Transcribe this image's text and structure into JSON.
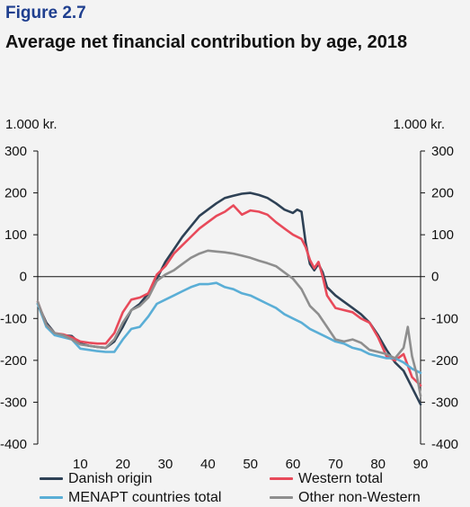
{
  "figure_label": "Figure 2.7",
  "title": "Average net financial contribution by age, 2018",
  "unit_left": "1.000 kr.",
  "unit_right": "1.000 kr.",
  "colors": {
    "danish": "#2e4155",
    "western": "#e84a5a",
    "menapt": "#5aaed6",
    "other": "#8e8e8e",
    "axis": "#111111",
    "background": "#f3f3f3"
  },
  "chart_data": {
    "type": "line",
    "title": "Average net financial contribution by age, 2018",
    "xlabel": "",
    "ylabel": "1.000 kr.",
    "xlim": [
      0,
      90
    ],
    "ylim": [
      -400,
      300
    ],
    "x_ticks": [
      10,
      20,
      30,
      40,
      50,
      60,
      70,
      80,
      90
    ],
    "y_ticks": [
      300,
      200,
      100,
      0,
      -100,
      -200,
      -300,
      -400
    ],
    "y_tick_labels": [
      "300",
      "200",
      "100",
      "0",
      "-100",
      "-200",
      "-300",
      "-400"
    ],
    "grid": false,
    "legend": "bottom",
    "series": [
      {
        "name": "Danish origin",
        "color": "#2e4155",
        "points": [
          [
            0,
            -65
          ],
          [
            2,
            -110
          ],
          [
            4,
            -135
          ],
          [
            6,
            -140
          ],
          [
            8,
            -142
          ],
          [
            10,
            -160
          ],
          [
            12,
            -165
          ],
          [
            14,
            -168
          ],
          [
            16,
            -170
          ],
          [
            18,
            -155
          ],
          [
            20,
            -120
          ],
          [
            22,
            -80
          ],
          [
            24,
            -65
          ],
          [
            26,
            -40
          ],
          [
            28,
            -5
          ],
          [
            30,
            35
          ],
          [
            32,
            65
          ],
          [
            34,
            95
          ],
          [
            36,
            120
          ],
          [
            38,
            145
          ],
          [
            40,
            160
          ],
          [
            42,
            175
          ],
          [
            44,
            188
          ],
          [
            46,
            193
          ],
          [
            48,
            198
          ],
          [
            50,
            200
          ],
          [
            52,
            195
          ],
          [
            54,
            188
          ],
          [
            56,
            175
          ],
          [
            58,
            160
          ],
          [
            60,
            152
          ],
          [
            61,
            160
          ],
          [
            62,
            155
          ],
          [
            63,
            80
          ],
          [
            64,
            30
          ],
          [
            65,
            15
          ],
          [
            66,
            30
          ],
          [
            67,
            10
          ],
          [
            68,
            -25
          ],
          [
            70,
            -45
          ],
          [
            72,
            -60
          ],
          [
            74,
            -75
          ],
          [
            76,
            -90
          ],
          [
            78,
            -110
          ],
          [
            80,
            -140
          ],
          [
            82,
            -175
          ],
          [
            84,
            -205
          ],
          [
            86,
            -225
          ],
          [
            88,
            -265
          ],
          [
            90,
            -305
          ]
        ]
      },
      {
        "name": "Western total",
        "color": "#e84a5a",
        "points": [
          [
            0,
            -60
          ],
          [
            2,
            -115
          ],
          [
            4,
            -135
          ],
          [
            6,
            -138
          ],
          [
            8,
            -145
          ],
          [
            10,
            -155
          ],
          [
            12,
            -158
          ],
          [
            14,
            -160
          ],
          [
            16,
            -160
          ],
          [
            18,
            -135
          ],
          [
            20,
            -85
          ],
          [
            22,
            -55
          ],
          [
            24,
            -50
          ],
          [
            26,
            -40
          ],
          [
            28,
            5
          ],
          [
            30,
            25
          ],
          [
            32,
            55
          ],
          [
            34,
            75
          ],
          [
            36,
            95
          ],
          [
            38,
            115
          ],
          [
            40,
            130
          ],
          [
            42,
            145
          ],
          [
            44,
            155
          ],
          [
            46,
            170
          ],
          [
            48,
            148
          ],
          [
            50,
            158
          ],
          [
            52,
            155
          ],
          [
            54,
            148
          ],
          [
            56,
            130
          ],
          [
            58,
            115
          ],
          [
            60,
            100
          ],
          [
            62,
            90
          ],
          [
            63,
            70
          ],
          [
            64,
            40
          ],
          [
            65,
            20
          ],
          [
            66,
            35
          ],
          [
            67,
            0
          ],
          [
            68,
            -45
          ],
          [
            70,
            -75
          ],
          [
            72,
            -80
          ],
          [
            74,
            -85
          ],
          [
            76,
            -100
          ],
          [
            78,
            -110
          ],
          [
            80,
            -145
          ],
          [
            82,
            -190
          ],
          [
            84,
            -200
          ],
          [
            86,
            -185
          ],
          [
            88,
            -240
          ],
          [
            90,
            -260
          ]
        ]
      },
      {
        "name": "MENAPT countries total",
        "color": "#5aaed6",
        "points": [
          [
            0,
            -65
          ],
          [
            2,
            -120
          ],
          [
            4,
            -140
          ],
          [
            6,
            -145
          ],
          [
            8,
            -150
          ],
          [
            10,
            -172
          ],
          [
            12,
            -175
          ],
          [
            14,
            -178
          ],
          [
            16,
            -180
          ],
          [
            18,
            -180
          ],
          [
            20,
            -150
          ],
          [
            22,
            -125
          ],
          [
            24,
            -120
          ],
          [
            26,
            -95
          ],
          [
            28,
            -65
          ],
          [
            30,
            -55
          ],
          [
            32,
            -45
          ],
          [
            34,
            -35
          ],
          [
            36,
            -25
          ],
          [
            38,
            -18
          ],
          [
            40,
            -18
          ],
          [
            42,
            -15
          ],
          [
            44,
            -25
          ],
          [
            46,
            -30
          ],
          [
            48,
            -40
          ],
          [
            50,
            -45
          ],
          [
            52,
            -55
          ],
          [
            54,
            -65
          ],
          [
            56,
            -75
          ],
          [
            58,
            -90
          ],
          [
            60,
            -100
          ],
          [
            62,
            -110
          ],
          [
            64,
            -125
          ],
          [
            66,
            -135
          ],
          [
            68,
            -145
          ],
          [
            70,
            -155
          ],
          [
            72,
            -160
          ],
          [
            74,
            -170
          ],
          [
            76,
            -175
          ],
          [
            78,
            -185
          ],
          [
            80,
            -190
          ],
          [
            82,
            -195
          ],
          [
            84,
            -195
          ],
          [
            86,
            -205
          ],
          [
            88,
            -220
          ],
          [
            90,
            -230
          ]
        ]
      },
      {
        "name": "Other non-Western",
        "color": "#8e8e8e",
        "points": [
          [
            0,
            -60
          ],
          [
            2,
            -115
          ],
          [
            4,
            -135
          ],
          [
            6,
            -140
          ],
          [
            8,
            -150
          ],
          [
            10,
            -162
          ],
          [
            12,
            -165
          ],
          [
            14,
            -168
          ],
          [
            16,
            -170
          ],
          [
            18,
            -150
          ],
          [
            20,
            -110
          ],
          [
            22,
            -80
          ],
          [
            24,
            -70
          ],
          [
            26,
            -50
          ],
          [
            28,
            -10
          ],
          [
            30,
            5
          ],
          [
            32,
            15
          ],
          [
            34,
            30
          ],
          [
            36,
            45
          ],
          [
            38,
            55
          ],
          [
            40,
            62
          ],
          [
            42,
            60
          ],
          [
            44,
            58
          ],
          [
            46,
            55
          ],
          [
            48,
            50
          ],
          [
            50,
            45
          ],
          [
            52,
            38
          ],
          [
            54,
            32
          ],
          [
            56,
            25
          ],
          [
            58,
            10
          ],
          [
            60,
            -5
          ],
          [
            62,
            -30
          ],
          [
            64,
            -70
          ],
          [
            66,
            -90
          ],
          [
            68,
            -120
          ],
          [
            70,
            -150
          ],
          [
            72,
            -155
          ],
          [
            74,
            -150
          ],
          [
            76,
            -158
          ],
          [
            78,
            -175
          ],
          [
            80,
            -180
          ],
          [
            82,
            -185
          ],
          [
            84,
            -195
          ],
          [
            86,
            -170
          ],
          [
            87,
            -120
          ],
          [
            88,
            -190
          ],
          [
            89,
            -230
          ],
          [
            90,
            -285
          ]
        ]
      }
    ]
  }
}
